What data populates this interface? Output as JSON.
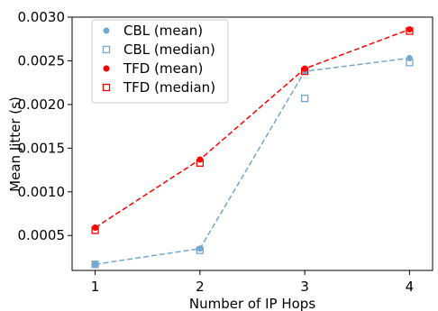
{
  "chart_data": {
    "type": "scatter",
    "xlabel": "Number of IP Hops",
    "ylabel": "Mean Jitter (s)",
    "xlim": [
      0.78,
      4.22
    ],
    "ylim": [
      0.0001,
      0.003
    ],
    "x_ticks": [
      1,
      2,
      3,
      4
    ],
    "x_tick_labels": [
      "1",
      "2",
      "3",
      "4"
    ],
    "y_ticks": [
      0.0005,
      0.001,
      0.0015,
      0.002,
      0.0025,
      0.003
    ],
    "y_tick_labels": [
      "0.0005",
      "0.0010",
      "0.0015",
      "0.0020",
      "0.0025",
      "0.0030"
    ],
    "grid": false,
    "legend_position": "upper-left",
    "series": [
      {
        "key": "cbl_mean",
        "name": "CBL (mean)",
        "marker": "filled-circle",
        "color": "#74a9cf",
        "dashed_line": true,
        "x": [
          1,
          2,
          3,
          4
        ],
        "y": [
          0.00017,
          0.00035,
          0.00238,
          0.00253
        ]
      },
      {
        "key": "cbl_median",
        "name": "CBL (median)",
        "marker": "open-square",
        "color": "#74a9cf",
        "dashed_line": false,
        "x": [
          1,
          2,
          3,
          4
        ],
        "y": [
          0.00017,
          0.00033,
          0.00207,
          0.00248
        ]
      },
      {
        "key": "tfd_mean",
        "name": "TFD (mean)",
        "marker": "filled-circle",
        "color": "#ff0000",
        "dashed_line": true,
        "x": [
          1,
          2,
          3,
          4
        ],
        "y": [
          0.00059,
          0.00137,
          0.00241,
          0.00286
        ]
      },
      {
        "key": "tfd_median",
        "name": "TFD (median)",
        "marker": "open-square",
        "color": "#ff0000",
        "dashed_line": false,
        "x": [
          1,
          2,
          3,
          4
        ],
        "y": [
          0.00056,
          0.00133,
          0.00238,
          0.00284
        ]
      }
    ]
  }
}
